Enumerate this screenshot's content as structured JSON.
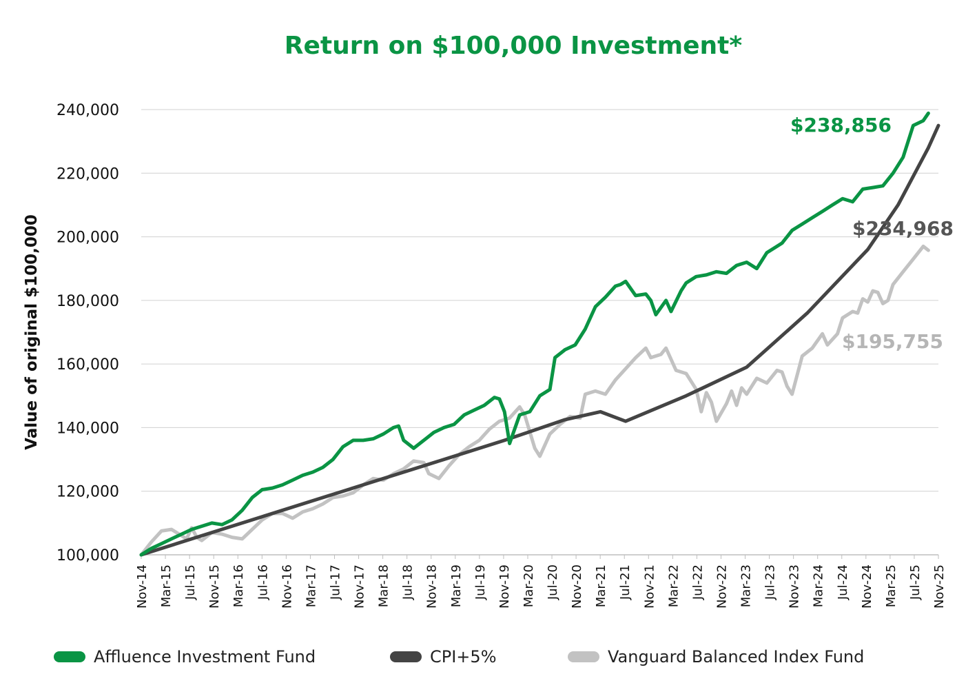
{
  "chart_data": {
    "type": "line",
    "title": "Return on $100,000 Investment*",
    "ylabel": "Value of original $100,000",
    "xlabel": "",
    "ylim": [
      100000,
      240000
    ],
    "yticks": [
      "100,000",
      "120,000",
      "140,000",
      "160,000",
      "180,000",
      "200,000",
      "220,000",
      "240,000"
    ],
    "ytick_values": [
      100000,
      120000,
      140000,
      160000,
      180000,
      200000,
      220000,
      240000
    ],
    "x_start": "Nov-14",
    "x_end": "Nov-25",
    "n_months": 132,
    "xticks": [
      "Nov-14",
      "Mar-15",
      "Jul-15",
      "Nov-15",
      "Mar-16",
      "Jul-16",
      "Nov-16",
      "Mar-17",
      "Jul-17",
      "Nov-17",
      "Mar-18",
      "Jul-18",
      "Nov-18",
      "Mar-19",
      "Jul-19",
      "Nov-19",
      "Mar-20",
      "Jul-20",
      "Nov-20",
      "Mar-21",
      "Jul-21",
      "Nov-21",
      "Mar-22",
      "Jul-22",
      "Nov-22",
      "Mar-23",
      "Jul-23",
      "Nov-23",
      "Mar-24",
      "Jul-24",
      "Nov-24",
      "Mar-25",
      "Jul-25",
      "Nov-25"
    ],
    "grid": true,
    "legend_position": "bottom",
    "colors": {
      "title": "#0a9444",
      "axis_text": "#111111",
      "grid": "#d0d0d0"
    },
    "series": [
      {
        "name": "Affluence Investment Fund",
        "color": "#0a9444",
        "end_label": "$238,856",
        "keypoints": [
          [
            0,
            100000
          ],
          [
            2,
            102000
          ],
          [
            4,
            103500
          ],
          [
            6,
            105000
          ],
          [
            8,
            106500
          ],
          [
            10,
            108000
          ],
          [
            12,
            109000
          ],
          [
            14,
            110000
          ],
          [
            16,
            109500
          ],
          [
            18,
            111000
          ],
          [
            20,
            114000
          ],
          [
            22,
            118000
          ],
          [
            24,
            120500
          ],
          [
            26,
            121000
          ],
          [
            28,
            122000
          ],
          [
            30,
            123500
          ],
          [
            32,
            125000
          ],
          [
            34,
            126000
          ],
          [
            36,
            127500
          ],
          [
            38,
            130000
          ],
          [
            40,
            134000
          ],
          [
            42,
            136000
          ],
          [
            44,
            136000
          ],
          [
            46,
            136500
          ],
          [
            48,
            138000
          ],
          [
            50,
            140000
          ],
          [
            51,
            140500
          ],
          [
            52,
            136000
          ],
          [
            54,
            133500
          ],
          [
            56,
            136000
          ],
          [
            58,
            138500
          ],
          [
            60,
            140000
          ],
          [
            62,
            141000
          ],
          [
            64,
            144000
          ],
          [
            66,
            145500
          ],
          [
            68,
            147000
          ],
          [
            70,
            149500
          ],
          [
            71,
            149000
          ],
          [
            72,
            145000
          ],
          [
            73,
            135000
          ],
          [
            75,
            144000
          ],
          [
            77,
            145000
          ],
          [
            79,
            150000
          ],
          [
            81,
            152000
          ],
          [
            82,
            162000
          ],
          [
            84,
            164500
          ],
          [
            86,
            166000
          ],
          [
            88,
            171000
          ],
          [
            90,
            178000
          ],
          [
            92,
            181000
          ],
          [
            94,
            184500
          ],
          [
            95,
            185000
          ],
          [
            96,
            186000
          ],
          [
            98,
            181500
          ],
          [
            100,
            182000
          ],
          [
            101,
            180000
          ],
          [
            102,
            175500
          ],
          [
            104,
            180000
          ],
          [
            105,
            176500
          ],
          [
            107,
            183000
          ],
          [
            108,
            185500
          ],
          [
            110,
            187500
          ],
          [
            112,
            188000
          ],
          [
            114,
            189000
          ],
          [
            116,
            188500
          ],
          [
            118,
            191000
          ],
          [
            120,
            192000
          ],
          [
            122,
            190000
          ],
          [
            124,
            195000
          ],
          [
            126,
            197000
          ],
          [
            127,
            198000
          ],
          [
            129,
            202000
          ],
          [
            131,
            204000
          ],
          [
            133,
            206000
          ],
          [
            135,
            208000
          ],
          [
            137,
            210000
          ],
          [
            139,
            212000
          ],
          [
            141,
            211000
          ],
          [
            143,
            215000
          ],
          [
            145,
            215500
          ],
          [
            147,
            216000
          ],
          [
            149,
            220000
          ],
          [
            151,
            225000
          ],
          [
            153,
            235000
          ],
          [
            155,
            236500
          ],
          [
            156,
            238856
          ]
        ]
      },
      {
        "name": "CPI+5%",
        "color": "#444444",
        "end_label": "$234,968",
        "keypoints": [
          [
            0,
            100000
          ],
          [
            12,
            106000
          ],
          [
            24,
            112000
          ],
          [
            36,
            118000
          ],
          [
            48,
            124000
          ],
          [
            60,
            130000
          ],
          [
            72,
            136000
          ],
          [
            84,
            142500
          ],
          [
            91,
            145000
          ],
          [
            96,
            142000
          ],
          [
            108,
            150000
          ],
          [
            120,
            159000
          ],
          [
            132,
            176000
          ],
          [
            144,
            196000
          ],
          [
            150,
            210000
          ],
          [
            156,
            228000
          ],
          [
            158,
            235000
          ]
        ]
      },
      {
        "name": "Vanguard Balanced Index Fund",
        "color": "#c2c2c2",
        "end_label": "$195,755",
        "keypoints": [
          [
            0,
            100000
          ],
          [
            2,
            104000
          ],
          [
            4,
            107500
          ],
          [
            6,
            108000
          ],
          [
            7,
            107000
          ],
          [
            9,
            105000
          ],
          [
            10,
            108500
          ],
          [
            11,
            105500
          ],
          [
            12,
            104500
          ],
          [
            14,
            107000
          ],
          [
            16,
            106500
          ],
          [
            18,
            105500
          ],
          [
            20,
            105000
          ],
          [
            22,
            108000
          ],
          [
            24,
            111000
          ],
          [
            26,
            113000
          ],
          [
            28,
            113000
          ],
          [
            30,
            111500
          ],
          [
            32,
            113500
          ],
          [
            34,
            114500
          ],
          [
            36,
            116000
          ],
          [
            38,
            118000
          ],
          [
            40,
            118500
          ],
          [
            42,
            119500
          ],
          [
            44,
            122000
          ],
          [
            46,
            124000
          ],
          [
            48,
            123500
          ],
          [
            50,
            125500
          ],
          [
            52,
            127000
          ],
          [
            54,
            129500
          ],
          [
            56,
            129000
          ],
          [
            57,
            125500
          ],
          [
            59,
            124000
          ],
          [
            61,
            128000
          ],
          [
            63,
            131500
          ],
          [
            65,
            134000
          ],
          [
            67,
            136000
          ],
          [
            69,
            139500
          ],
          [
            71,
            142000
          ],
          [
            73,
            143000
          ],
          [
            75,
            146500
          ],
          [
            76,
            144000
          ],
          [
            78,
            133500
          ],
          [
            79,
            131000
          ],
          [
            81,
            138000
          ],
          [
            83,
            141000
          ],
          [
            85,
            143500
          ],
          [
            87,
            143000
          ],
          [
            88,
            150500
          ],
          [
            90,
            151500
          ],
          [
            92,
            150500
          ],
          [
            94,
            155000
          ],
          [
            96,
            158500
          ],
          [
            98,
            162000
          ],
          [
            100,
            165000
          ],
          [
            101,
            162000
          ],
          [
            103,
            163000
          ],
          [
            104,
            165000
          ],
          [
            106,
            158000
          ],
          [
            108,
            157000
          ],
          [
            110,
            152000
          ],
          [
            111,
            145000
          ],
          [
            112,
            151000
          ],
          [
            113,
            148000
          ],
          [
            114,
            142000
          ],
          [
            116,
            147500
          ],
          [
            117,
            151500
          ],
          [
            118,
            147000
          ],
          [
            119,
            152500
          ],
          [
            120,
            150500
          ],
          [
            122,
            155500
          ],
          [
            124,
            154000
          ],
          [
            126,
            158000
          ],
          [
            127,
            157500
          ],
          [
            128,
            153000
          ],
          [
            129,
            150500
          ],
          [
            131,
            162500
          ],
          [
            133,
            165000
          ],
          [
            135,
            169500
          ],
          [
            136,
            166000
          ],
          [
            138,
            169500
          ],
          [
            139,
            174500
          ],
          [
            141,
            176500
          ],
          [
            142,
            176000
          ],
          [
            143,
            180500
          ],
          [
            144,
            179500
          ],
          [
            145,
            183000
          ],
          [
            146,
            182500
          ],
          [
            147,
            179000
          ],
          [
            148,
            180000
          ],
          [
            149,
            185000
          ],
          [
            151,
            189000
          ],
          [
            153,
            193000
          ],
          [
            155,
            197000
          ],
          [
            156,
            195755
          ]
        ]
      }
    ]
  }
}
